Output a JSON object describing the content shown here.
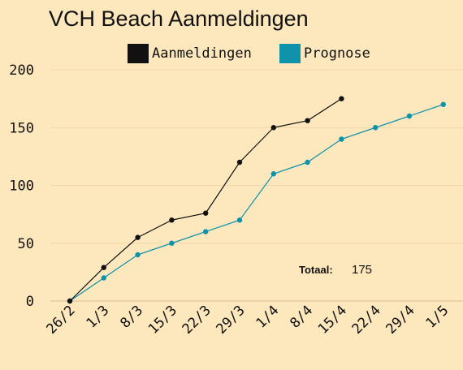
{
  "chart_data": {
    "type": "line",
    "title": "VCH Beach Aanmeldingen",
    "xlabel": "",
    "ylabel": "",
    "categories": [
      "26/2",
      "1/3",
      "8/3",
      "15/3",
      "22/3",
      "29/3",
      "1/4",
      "8/4",
      "15/4",
      "22/4",
      "29/4",
      "1/5"
    ],
    "yticks": [
      "0",
      "50",
      "100",
      "150",
      "200"
    ],
    "ylim": [
      0,
      200
    ],
    "grid": "horizontal",
    "legend_position": "top",
    "series": [
      {
        "name": "Aanmeldingen",
        "color": "#111111",
        "values": [
          0,
          29,
          55,
          70,
          76,
          120,
          150,
          156,
          175,
          null,
          null,
          null
        ]
      },
      {
        "name": "Prognose",
        "color": "#0f93ab",
        "values": [
          0,
          20,
          40,
          50,
          60,
          70,
          110,
          120,
          140,
          150,
          160,
          170
        ]
      }
    ],
    "annotation": {
      "label": "Totaal:",
      "value": "175"
    }
  }
}
